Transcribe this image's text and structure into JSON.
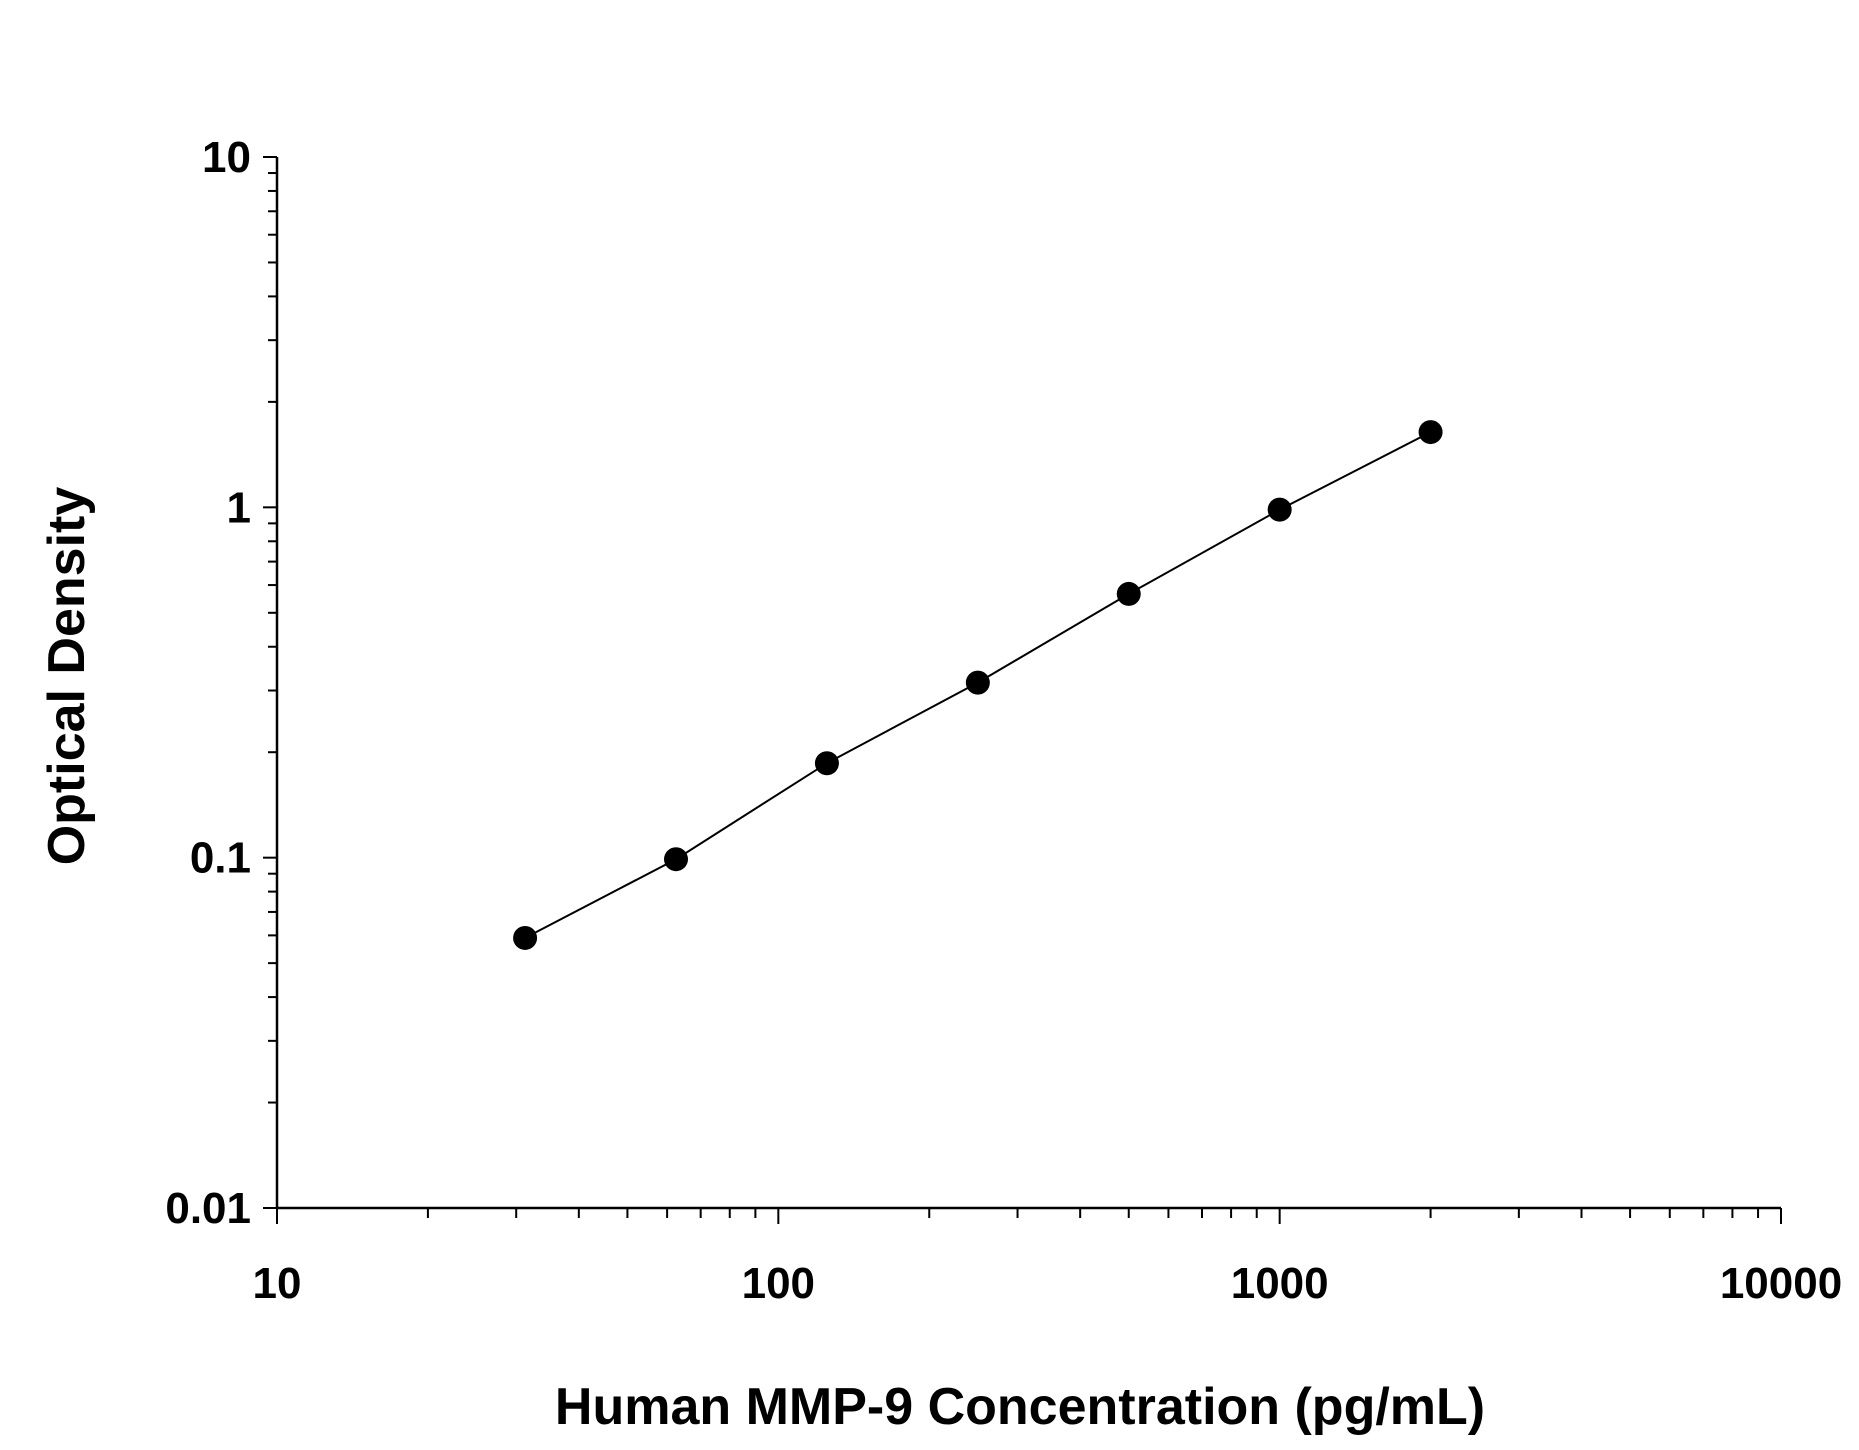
{
  "chart_data": {
    "type": "scatter",
    "title": "",
    "xlabel": "Human MMP-9 Concentration (pg/mL)",
    "ylabel": "Optical Density",
    "x_scale": "log",
    "y_scale": "log",
    "xlim": [
      10,
      10000
    ],
    "ylim": [
      0.01,
      10
    ],
    "x_ticks": [
      10,
      100,
      1000,
      10000
    ],
    "x_tick_labels": [
      "10",
      "100",
      "1000",
      "10000"
    ],
    "y_ticks": [
      0.01,
      0.1,
      1,
      10
    ],
    "y_tick_labels": [
      "0.01",
      "0.1",
      "1",
      "10"
    ],
    "grid": false,
    "legend": "none",
    "series": [
      {
        "x": [
          31.25,
          62.5,
          125,
          250,
          500,
          1000,
          2000
        ],
        "y": [
          0.059,
          0.099,
          0.186,
          0.316,
          0.566,
          0.985,
          1.64
        ],
        "marker": "filled-circle",
        "fit_line": true,
        "color": "#000000"
      }
    ]
  }
}
